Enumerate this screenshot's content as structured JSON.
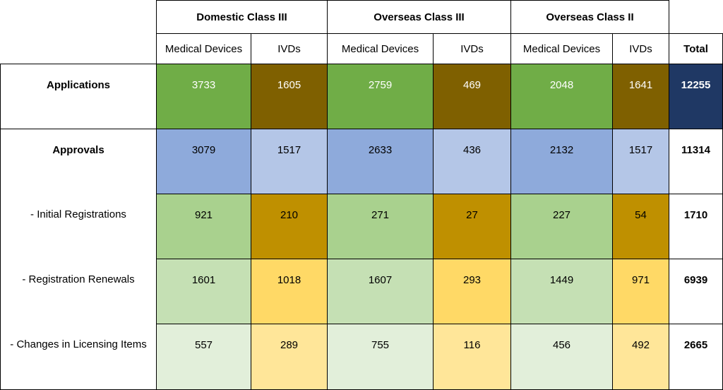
{
  "table": {
    "group_headers": [
      "Domestic Class III",
      "Overseas Class III",
      "Overseas Class II"
    ],
    "sub_headers": [
      "Medical Devices",
      "IVDs",
      "Medical Devices",
      "IVDs",
      "Medical Devices",
      "IVDs"
    ],
    "total_header": "Total",
    "rows": [
      {
        "label": "Applications",
        "bold": true,
        "values": [
          "3733",
          "1605",
          "2759",
          "469",
          "2048",
          "1641"
        ],
        "total": "12255"
      },
      {
        "label": "Approvals",
        "bold": true,
        "values": [
          "3079",
          "1517",
          "2633",
          "436",
          "2132",
          "1517"
        ],
        "total": "11314"
      },
      {
        "label": "- Initial Registrations",
        "bold": false,
        "values": [
          "921",
          "210",
          "271",
          "27",
          "227",
          "54"
        ],
        "total": "1710"
      },
      {
        "label": "- Registration Renewals",
        "bold": false,
        "values": [
          "1601",
          "1018",
          "1607",
          "293",
          "1449",
          "971"
        ],
        "total": "6939"
      },
      {
        "label": "- Changes in Licensing Items",
        "bold": false,
        "values": [
          "557",
          "289",
          "755",
          "116",
          "456",
          "492"
        ],
        "total": "2665"
      }
    ]
  },
  "colors": {
    "applications_md": "#70ad47",
    "applications_ivd": "#7f6000",
    "applications_total": "#1f3864",
    "approvals_md": "#8eaadb",
    "approvals_ivd": "#b4c6e7",
    "initial_md": "#a9d18e",
    "initial_ivd": "#bf9000",
    "renewals_md": "#c5e0b4",
    "renewals_ivd": "#ffd966",
    "changes_md": "#e2efda",
    "changes_ivd": "#ffe699"
  }
}
